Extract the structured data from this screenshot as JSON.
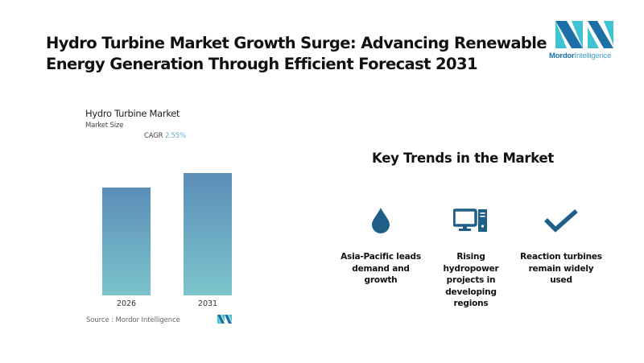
{
  "header": {
    "title_line1": "Hydro Turbine Market Growth Surge: Advancing Renewable",
    "title_line2": "Energy Generation Through Efficient Forecast 2031",
    "logo_text_bold": "Mordor",
    "logo_text_light": "Intelligence"
  },
  "chart_panel": {
    "title": "Hydro Turbine Market",
    "subtitle": "Market Size",
    "cagr_label": "CAGR",
    "cagr_value": "2.55%",
    "source": "Source :  Mordor Intelligence"
  },
  "chart_data": {
    "type": "bar",
    "title": "Hydro Turbine Market",
    "subtitle": "Market Size",
    "categories": [
      "2026",
      "2031"
    ],
    "values": [
      100,
      113.4
    ],
    "value_units": "relative (no axis shown)",
    "xlabel": "",
    "ylabel": "",
    "ylim": [
      0,
      113.4
    ],
    "grid": false,
    "annotations": [
      "CAGR 2.55%"
    ],
    "colors": {
      "bar_top": "#5b8db8",
      "bar_bottom": "#7cc4cc"
    }
  },
  "trends": {
    "title": "Key Trends in the Market",
    "icon_color": "#1f5f87",
    "items": [
      {
        "icon": "water-drop-icon",
        "label_lines": [
          "Asia-Pacific leads",
          "demand and",
          "growth"
        ]
      },
      {
        "icon": "computer-icon",
        "label_lines": [
          "Rising",
          "hydropower",
          "projects in",
          "developing",
          "regions"
        ]
      },
      {
        "icon": "checkmark-icon",
        "label_lines": [
          "Reaction turbines",
          "remain widely",
          "used"
        ]
      }
    ]
  }
}
